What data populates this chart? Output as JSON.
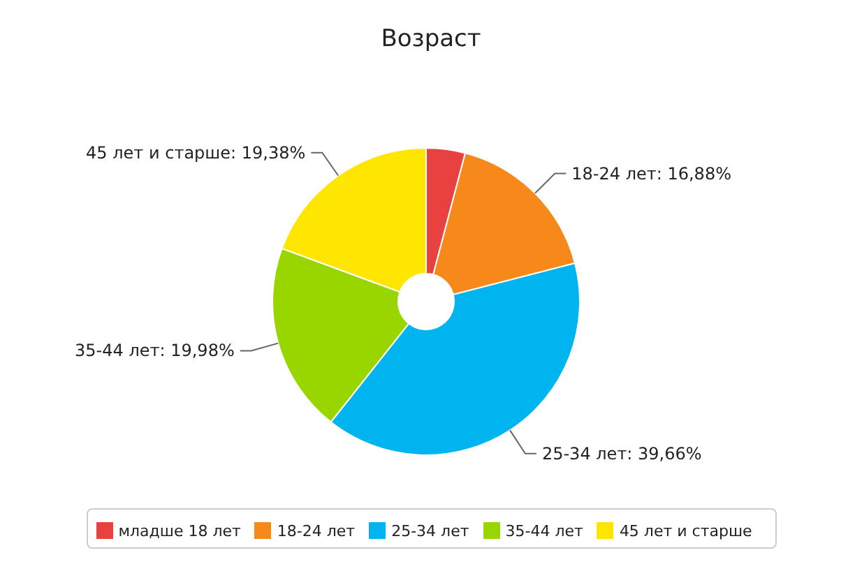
{
  "chart_data": {
    "type": "pie",
    "title": "Возраст",
    "categories": [
      "младше 18 лет",
      "18-24 лет",
      "25-34 лет",
      "35-44 лет",
      "45 лет и старше"
    ],
    "values": [
      4.1,
      16.88,
      39.66,
      19.98,
      19.38
    ],
    "colors": [
      "#e8413f",
      "#f7891b",
      "#00b4ef",
      "#99d600",
      "#ffe600"
    ],
    "value_labels": [
      null,
      "18-24 лет: 16,88%",
      "25-34 лет: 39,66%",
      "35-44 лет: 19,98%",
      "45 лет и старше: 19,38%"
    ],
    "legend": "bottom"
  }
}
